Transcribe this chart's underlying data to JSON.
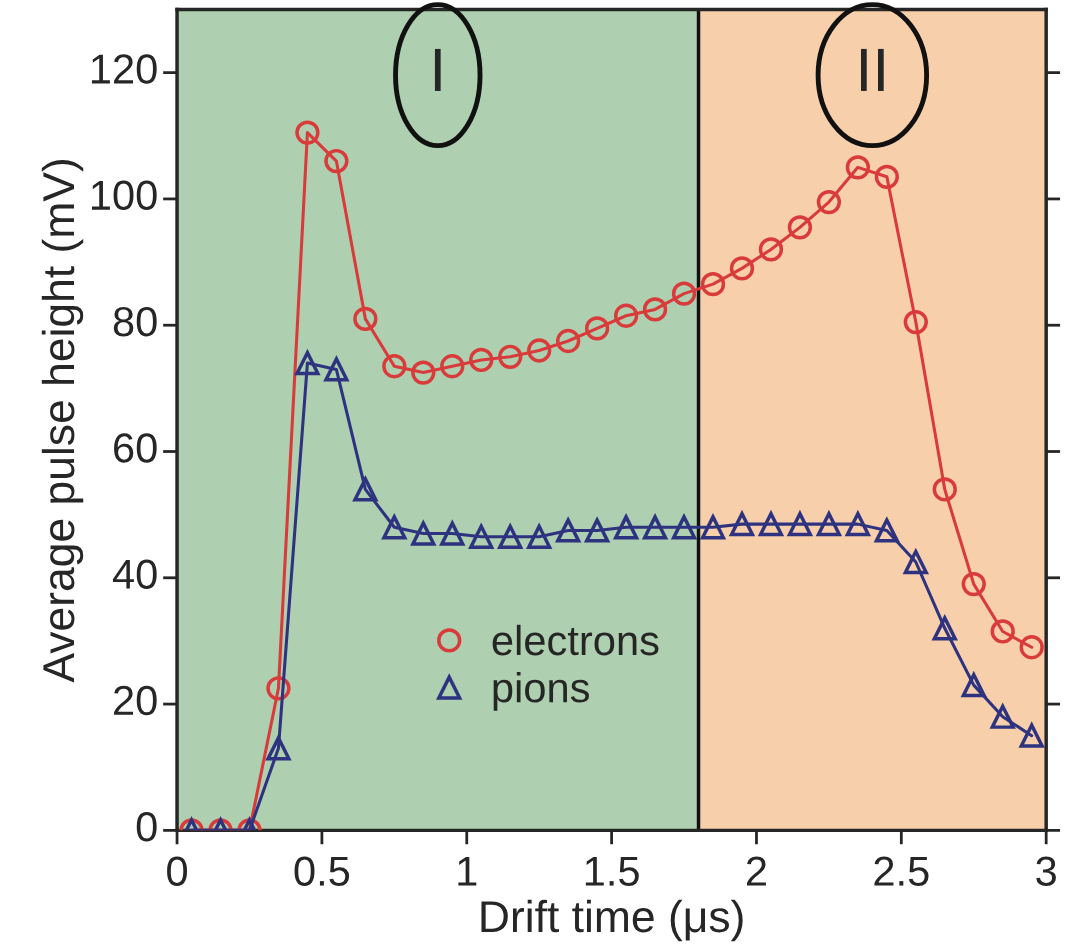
{
  "chart_data": {
    "type": "line",
    "xlabel": "Drift time (μs)",
    "ylabel": "Average pulse height (mV)",
    "x": [
      0.05,
      0.15,
      0.25,
      0.35,
      0.45,
      0.55,
      0.65,
      0.75,
      0.85,
      0.95,
      1.05,
      1.15,
      1.25,
      1.35,
      1.45,
      1.55,
      1.65,
      1.75,
      1.85,
      1.95,
      2.05,
      2.15,
      2.25,
      2.35,
      2.45,
      2.55,
      2.65,
      2.75,
      2.85,
      2.95
    ],
    "series": [
      {
        "name": "electrons",
        "color": "#d93a3a",
        "marker": "circle",
        "values": [
          0,
          0,
          0,
          22.5,
          110.5,
          106,
          81,
          73.5,
          72.5,
          73.5,
          74.5,
          75,
          76,
          77.5,
          79.5,
          81.5,
          82.5,
          85,
          86.5,
          89,
          92,
          95.5,
          99.5,
          105,
          103.5,
          80.5,
          54,
          39,
          31.5,
          29
        ]
      },
      {
        "name": "pions",
        "color": "#2e3380",
        "marker": "triangle",
        "values": [
          0,
          0,
          0,
          13,
          74,
          73,
          54,
          48,
          47,
          47,
          46.5,
          46.5,
          46.5,
          47.5,
          47.5,
          48,
          48,
          48,
          48,
          48.5,
          48.5,
          48.5,
          48.5,
          48.5,
          47.5,
          42.5,
          32,
          23,
          18,
          15
        ]
      }
    ],
    "xlim": [
      0,
      3
    ],
    "ylim": [
      0,
      130
    ],
    "xticks": [
      0,
      0.5,
      1,
      1.5,
      2,
      2.5,
      3
    ],
    "yticks": [
      0,
      20,
      40,
      60,
      80,
      100,
      120
    ],
    "bands": [
      {
        "axis": "x",
        "from": 0,
        "to": 1.8,
        "label": "I",
        "color": "#aecfb0"
      },
      {
        "axis": "x",
        "from": 1.8,
        "to": 3,
        "label": "II",
        "color": "#f7cfab"
      }
    ],
    "ref_lines": [
      {
        "axis": "x",
        "value": 1.8,
        "color": "#111111",
        "line_style": "solid"
      }
    ],
    "grid": false,
    "legend": "bottom",
    "line_style": "solid"
  }
}
